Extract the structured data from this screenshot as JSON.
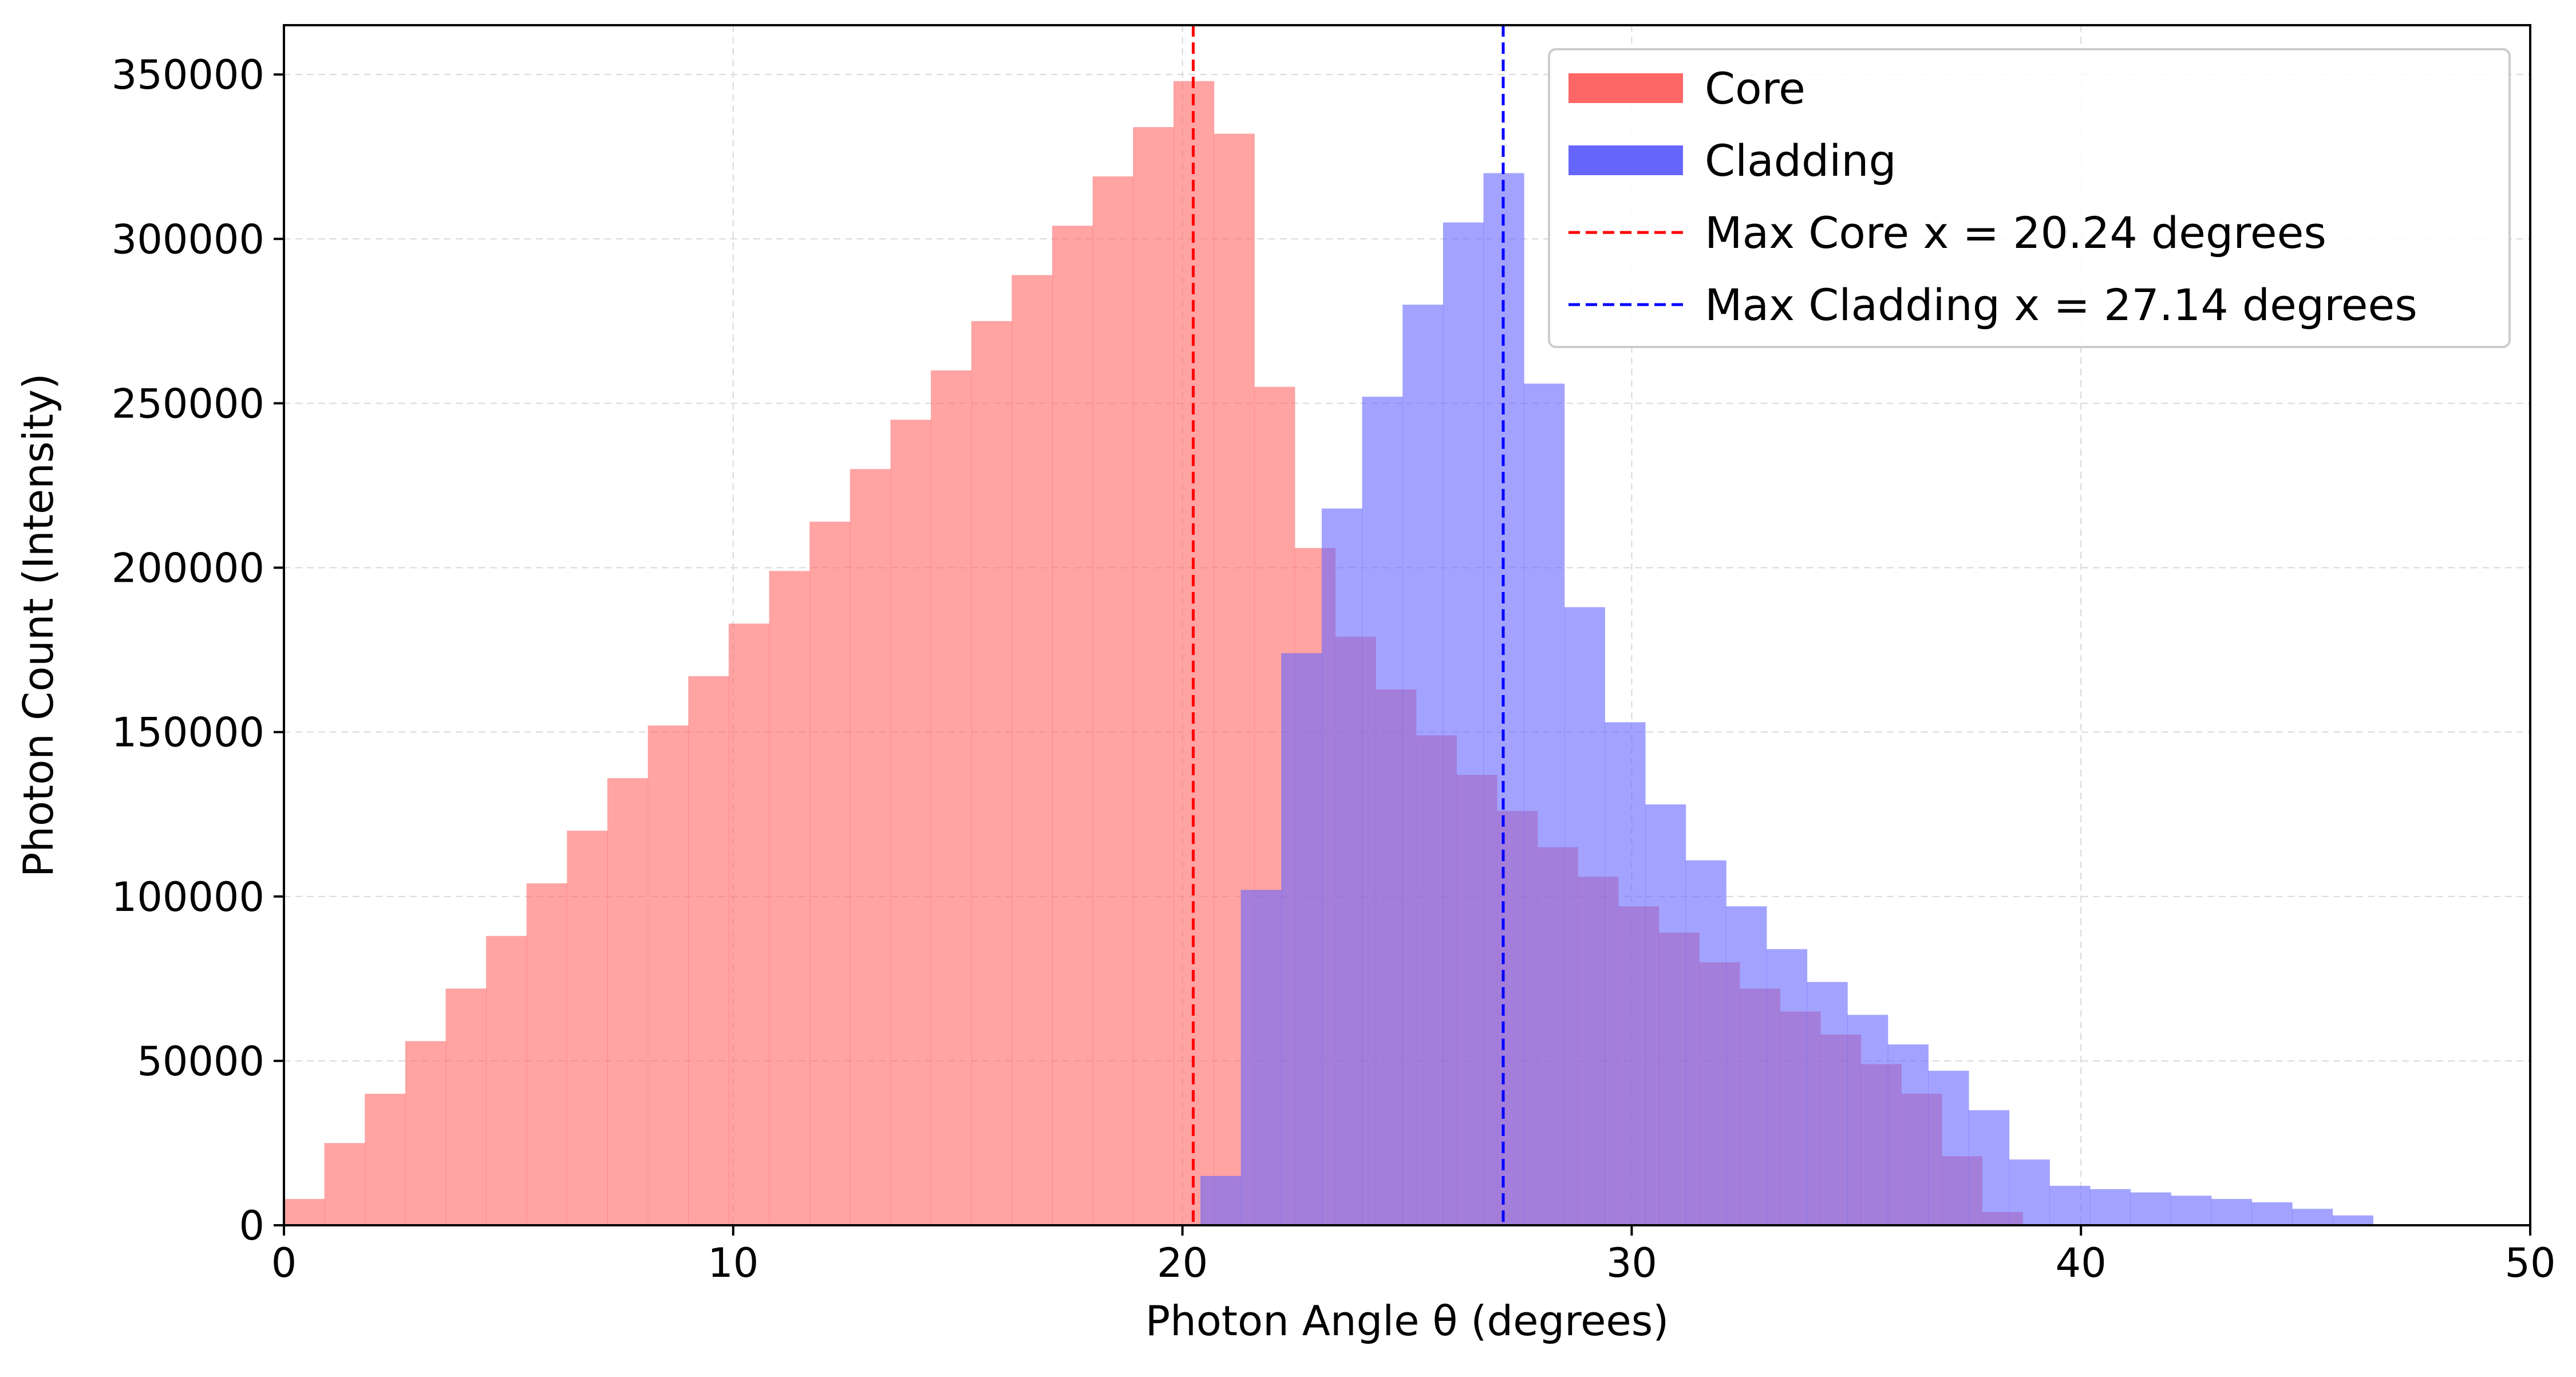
{
  "chart_data": {
    "type": "histogram",
    "xlabel": "Photon Angle θ (degrees)",
    "ylabel": "Photon Count (Intensity)",
    "xlim": [
      0,
      50
    ],
    "ylim": [
      0,
      365000
    ],
    "xticks": [
      0,
      10,
      20,
      30,
      40,
      50
    ],
    "xtick_labels": [
      "0",
      "10",
      "20",
      "30",
      "40",
      "50"
    ],
    "yticks": [
      0,
      50000,
      100000,
      150000,
      200000,
      250000,
      300000,
      350000
    ],
    "ytick_labels": [
      "0",
      "50000",
      "100000",
      "150000",
      "200000",
      "250000",
      "300000",
      "350000"
    ],
    "grid": true,
    "legend_position": "top-right",
    "series": [
      {
        "name": "Core",
        "color": "#ff6666",
        "bin_edges": [
          0.0,
          0.9,
          1.8,
          2.7,
          3.6,
          4.5,
          5.4,
          6.3,
          7.2,
          8.1,
          9.0,
          9.9,
          10.8,
          11.7,
          12.6,
          13.5,
          14.4,
          15.3,
          16.2,
          17.1,
          18.0,
          18.9,
          19.8,
          20.7,
          21.6,
          22.5,
          23.4,
          24.3,
          25.2,
          26.1,
          27.0,
          27.9,
          28.8,
          29.7,
          30.6,
          31.5,
          32.4,
          33.3,
          34.2,
          35.1,
          36.0,
          36.9,
          37.8,
          38.7
        ],
        "values": [
          8000,
          25000,
          40000,
          56000,
          72000,
          88000,
          104000,
          120000,
          136000,
          152000,
          167000,
          183000,
          199000,
          214000,
          230000,
          245000,
          260000,
          275000,
          289000,
          304000,
          319000,
          334000,
          348000,
          332000,
          255000,
          206000,
          179000,
          163000,
          149000,
          137000,
          126000,
          115000,
          106000,
          97000,
          89000,
          80000,
          72000,
          65000,
          58000,
          49000,
          40000,
          21000,
          4000
        ]
      },
      {
        "name": "Cladding",
        "color": "#6666ff",
        "bin_edges": [
          20.4,
          21.3,
          22.2,
          23.1,
          24.0,
          24.9,
          25.8,
          26.7,
          27.6,
          28.5,
          29.4,
          30.3,
          31.2,
          32.1,
          33.0,
          33.9,
          34.8,
          35.7,
          36.6,
          37.5,
          38.4,
          39.3,
          40.2,
          41.1,
          42.0,
          42.9,
          43.8,
          44.7,
          45.6,
          46.5
        ],
        "values": [
          15000,
          102000,
          174000,
          218000,
          252000,
          280000,
          305000,
          320000,
          256000,
          188000,
          153000,
          128000,
          111000,
          97000,
          84000,
          74000,
          64000,
          55000,
          47000,
          35000,
          20000,
          12000,
          11000,
          10000,
          9000,
          8000,
          7000,
          5000,
          3000
        ]
      }
    ],
    "reference_lines": [
      {
        "label": "Max Core x = 20.24 degrees",
        "x": 20.24,
        "color": "#ff0000",
        "style": "dashed"
      },
      {
        "label": "Max Cladding x = 27.14 degrees",
        "x": 27.14,
        "color": "#0000ff",
        "style": "dashed"
      }
    ]
  }
}
